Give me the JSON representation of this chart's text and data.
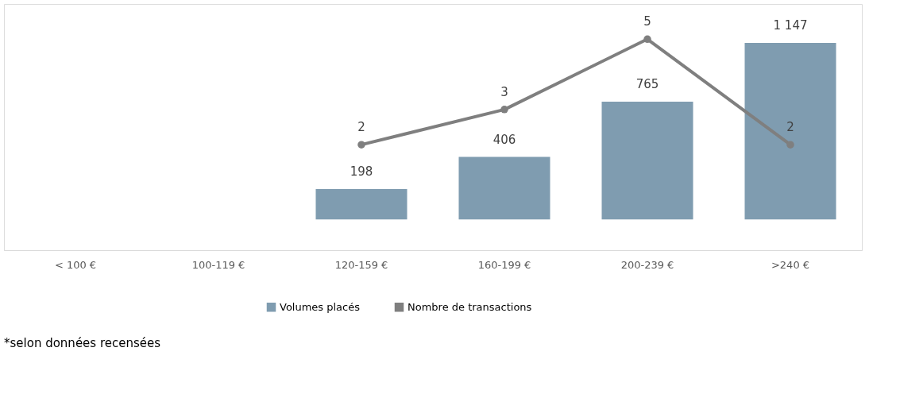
{
  "chart_data": {
    "type": "bar",
    "categories": [
      "< 100 €",
      "100-119 €",
      "120-159 €",
      "160-199 €",
      "200-239 €",
      ">240 €"
    ],
    "series": [
      {
        "name": "Volumes placés",
        "color": "#7f9cb0",
        "values": [
          null,
          null,
          198,
          406,
          765,
          1147
        ]
      },
      {
        "name": "Nombre de transactions",
        "color": "#7f7f7f",
        "type": "line",
        "axis": "y2",
        "marker": "circle",
        "line_style": "solid",
        "values": [
          null,
          null,
          2,
          3,
          5,
          2
        ]
      }
    ],
    "data_labels": true,
    "grid": false,
    "legend": "bottom",
    "tick_labels": "x",
    "annotations": [
      "*selon données recensées"
    ]
  }
}
